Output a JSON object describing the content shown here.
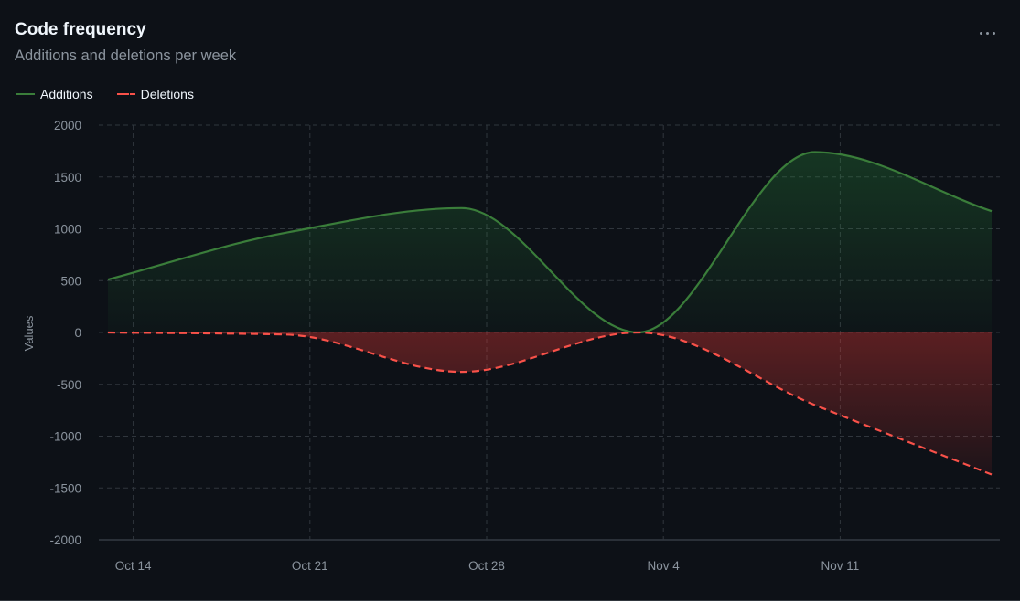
{
  "header": {
    "title": "Code frequency",
    "subtitle": "Additions and deletions per week",
    "more_icon": "kebab-horizontal-icon"
  },
  "legend": {
    "additions": "Additions",
    "deletions": "Deletions"
  },
  "colors": {
    "background": "#0d1117",
    "additions": "#3a7d3a",
    "deletions": "#f85149",
    "grid": "#30363d",
    "text_muted": "#8b949e"
  },
  "chart_data": {
    "type": "area",
    "title": "Code frequency",
    "subtitle": "Additions and deletions per week",
    "xlabel": "",
    "ylabel": "Values",
    "ylim": [
      -2000,
      2000
    ],
    "yticks": [
      2000,
      1500,
      1000,
      500,
      0,
      -500,
      -1000,
      -1500,
      -2000
    ],
    "xticks": [
      "Oct 14",
      "Oct 21",
      "Oct 28",
      "Nov 4",
      "Nov 11"
    ],
    "xlim": [
      "2024-10-13",
      "2024-11-17"
    ],
    "grid": true,
    "legend_position": "top-left",
    "series": [
      {
        "name": "Additions",
        "style": "solid",
        "points": [
          {
            "x": "2024-10-13",
            "y": 510
          },
          {
            "x": "2024-10-20",
            "y": 960
          },
          {
            "x": "2024-10-27",
            "y": 1200
          },
          {
            "x": "2024-11-03",
            "y": 0
          },
          {
            "x": "2024-11-10",
            "y": 1740
          },
          {
            "x": "2024-11-17",
            "y": 1170
          }
        ]
      },
      {
        "name": "Deletions",
        "style": "dashed",
        "points": [
          {
            "x": "2024-10-13",
            "y": 0
          },
          {
            "x": "2024-10-20",
            "y": -20
          },
          {
            "x": "2024-10-27",
            "y": -380
          },
          {
            "x": "2024-11-03",
            "y": 0
          },
          {
            "x": "2024-11-10",
            "y": -700
          },
          {
            "x": "2024-11-17",
            "y": -1370
          }
        ]
      }
    ]
  }
}
